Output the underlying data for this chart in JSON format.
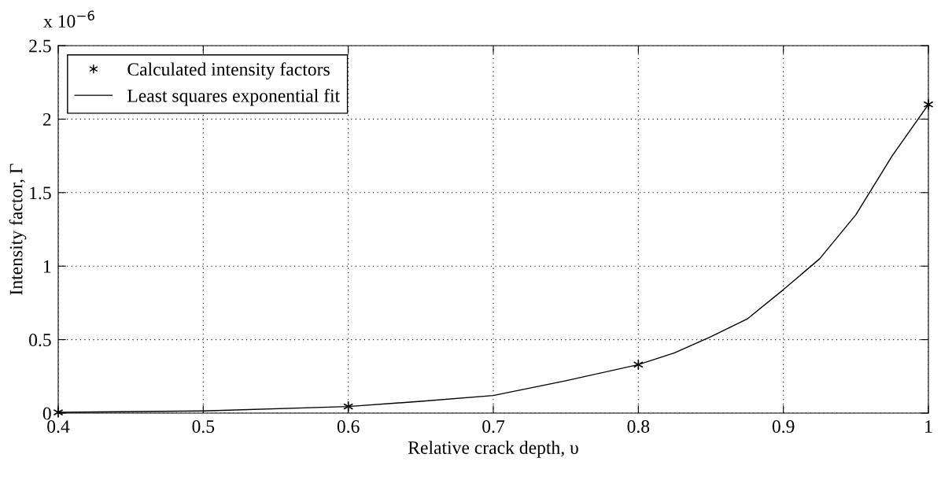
{
  "chart_data": {
    "type": "scatter",
    "xlabel": "Relative crack depth, υ",
    "ylabel": "Intensity factor, Γ",
    "annotations": [
      "x 10$^{−6}$"
    ],
    "xlim": [
      0.4,
      1
    ],
    "xticks": [
      0.4,
      0.5,
      0.6,
      0.7,
      0.8,
      0.9,
      1
    ],
    "ylim": [
      0,
      2.5
    ],
    "yticks": [
      0,
      0.5,
      1,
      1.5,
      2,
      2.5
    ],
    "grid": true,
    "legend": "top left",
    "series": [
      {
        "name": "Calculated intensity factors",
        "marker": "cross",
        "color": "#000000",
        "x": [
          0.4,
          0.6,
          0.8,
          1.0
        ],
        "values": [
          0.005,
          0.045,
          0.33,
          2.1
        ]
      },
      {
        "name": "Least squares exponential fit",
        "type": "line",
        "marker": "none",
        "line_style": "solid",
        "color": "#000000",
        "x": [
          0.4,
          0.5,
          0.6,
          0.65,
          0.7,
          0.75,
          0.8,
          0.825,
          0.85,
          0.875,
          0.9,
          0.925,
          0.95,
          0.975,
          1.0
        ],
        "values": [
          0.005,
          0.015,
          0.045,
          0.08,
          0.12,
          0.22,
          0.33,
          0.41,
          0.52,
          0.64,
          0.84,
          1.05,
          1.35,
          1.75,
          2.1
        ]
      }
    ]
  }
}
